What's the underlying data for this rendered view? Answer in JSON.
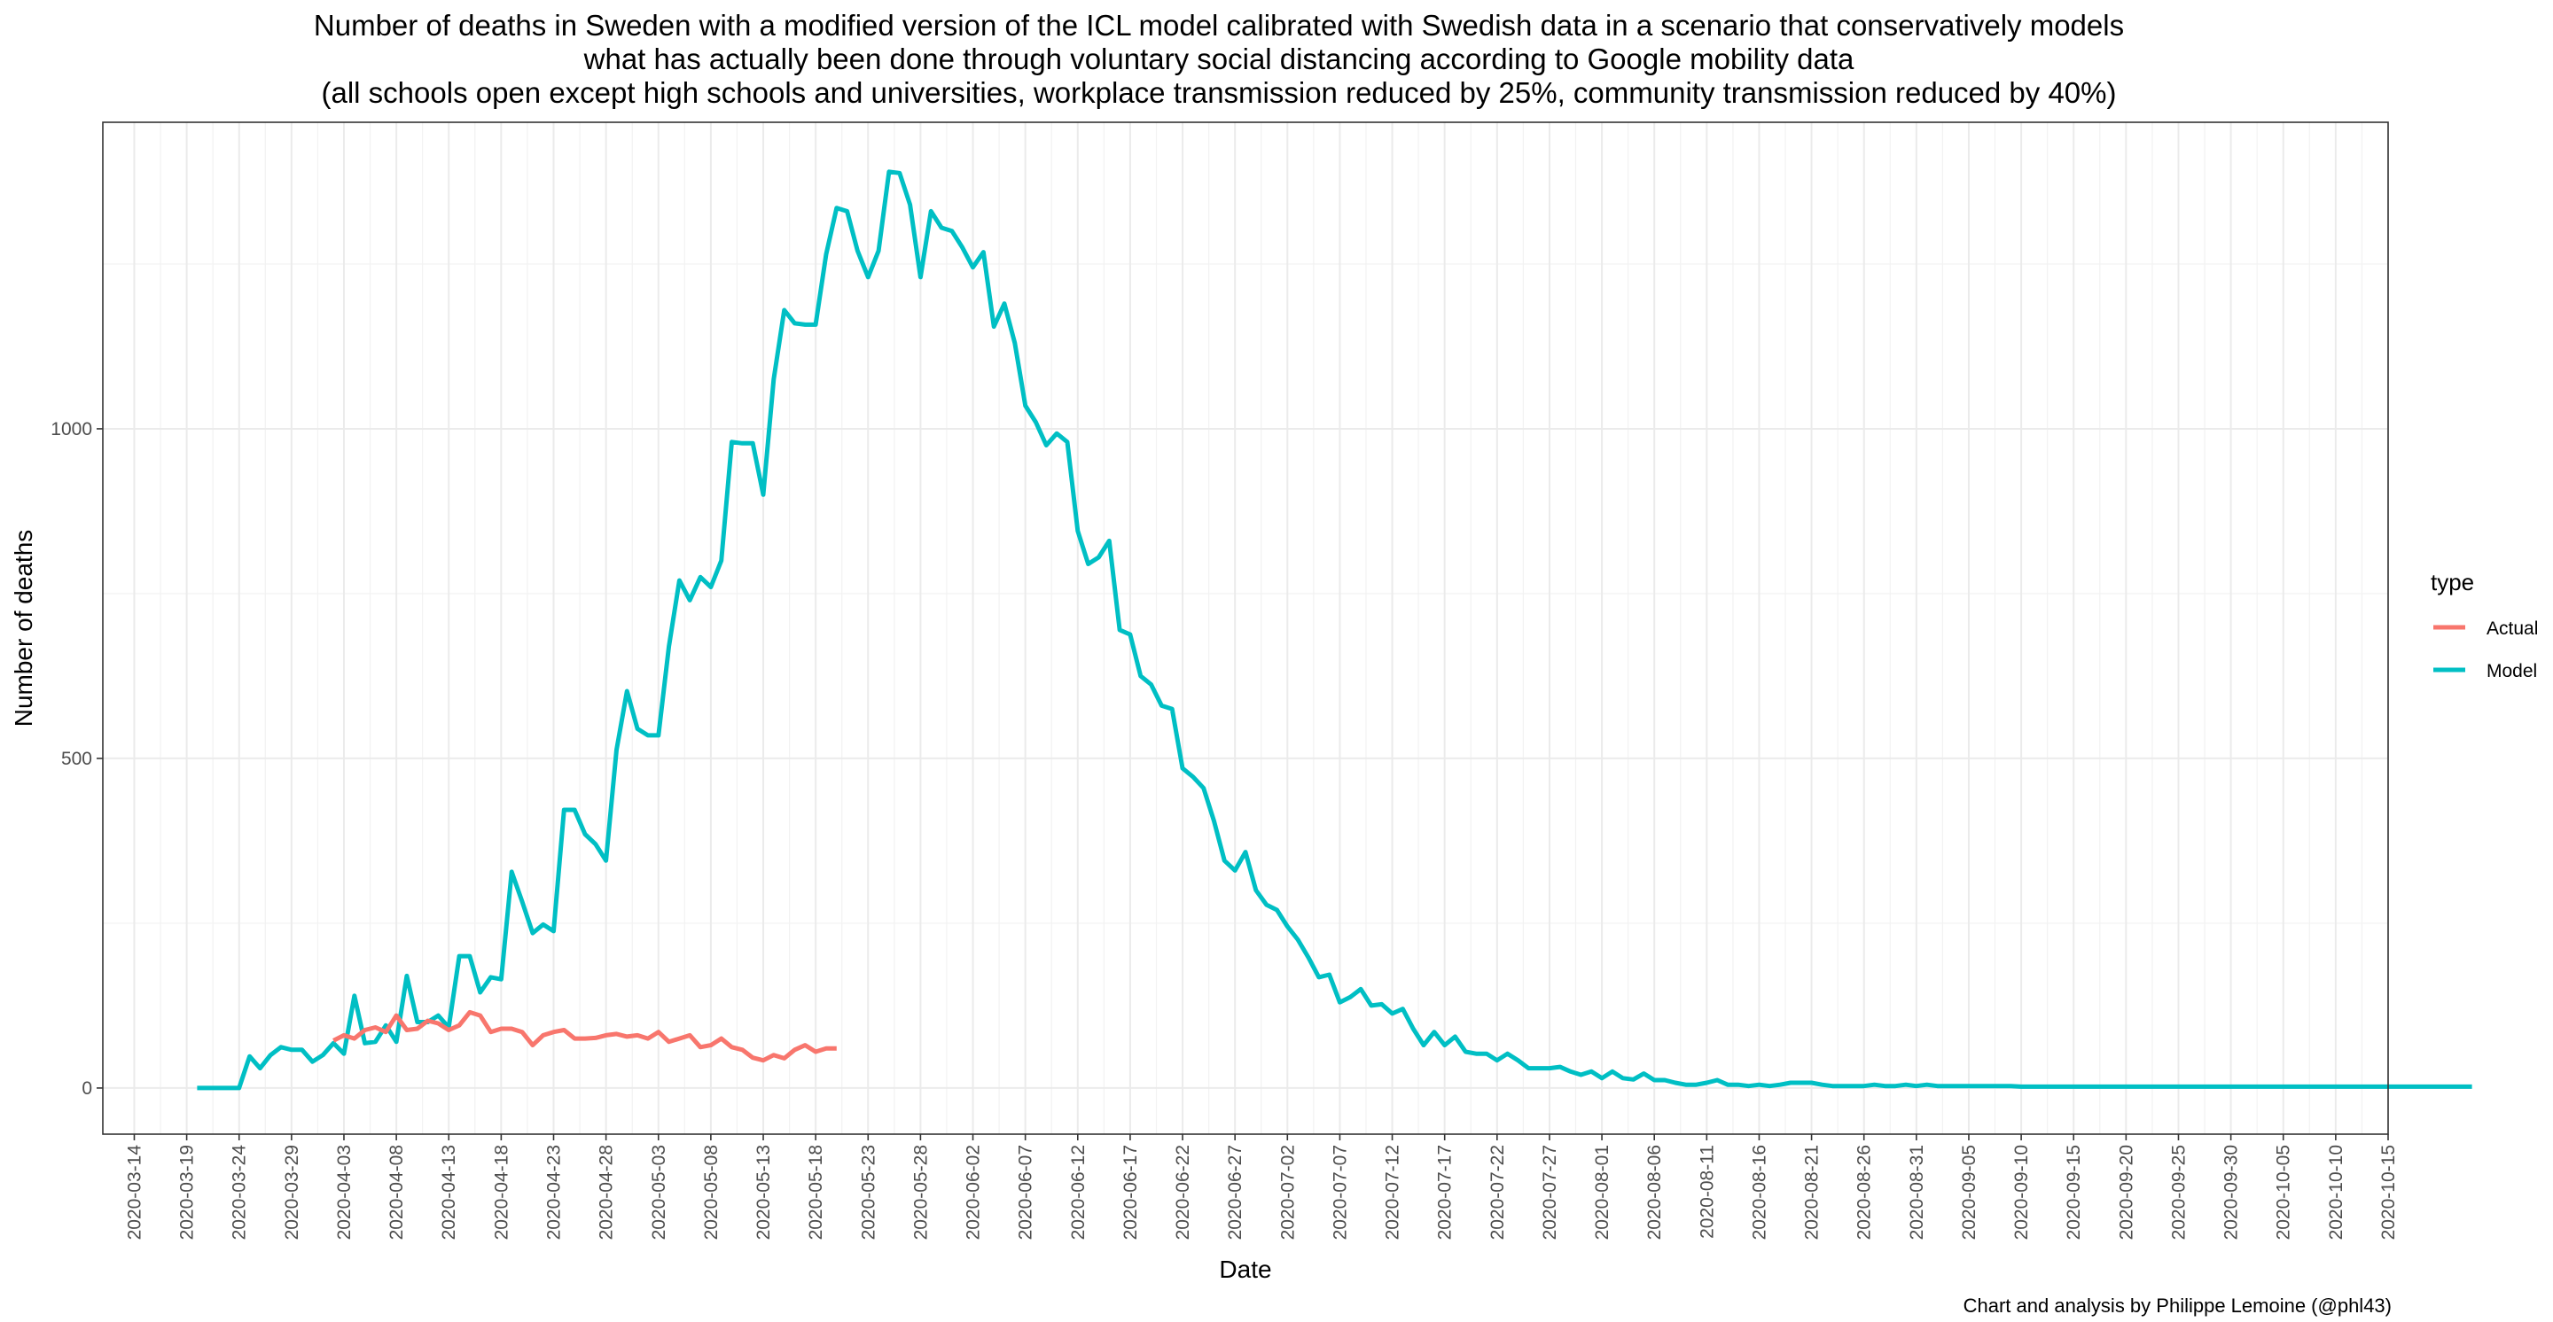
{
  "chart_data": {
    "type": "line",
    "title": [
      "Number of deaths in Sweden with a modified version of the ICL model calibrated with Swedish data in a scenario that conservatively models",
      "what has actually been done through voluntary social distancing according to Google mobility data",
      "(all schools open except high schools and universities, workplace transmission reduced by 25%, community transmission reduced by 40%)"
    ],
    "xlabel": "Date",
    "ylabel": "Number of deaths",
    "caption": "Chart and analysis by Philippe Lemoine (@phl43)",
    "x_start_date": "2020-03-11",
    "xlim_days": [
      0,
      218
    ],
    "ylim": [
      -70,
      1465
    ],
    "y_ticks": [
      0,
      500,
      1000
    ],
    "x_tick_labels": [
      "2020-03-14",
      "2020-03-19",
      "2020-03-24",
      "2020-03-29",
      "2020-04-03",
      "2020-04-08",
      "2020-04-13",
      "2020-04-18",
      "2020-04-23",
      "2020-04-28",
      "2020-05-03",
      "2020-05-08",
      "2020-05-13",
      "2020-05-18",
      "2020-05-23",
      "2020-05-28",
      "2020-06-02",
      "2020-06-07",
      "2020-06-12",
      "2020-06-17",
      "2020-06-22",
      "2020-06-27",
      "2020-07-02",
      "2020-07-07",
      "2020-07-12",
      "2020-07-17",
      "2020-07-22",
      "2020-07-27",
      "2020-08-01",
      "2020-08-06",
      "2020-08-11",
      "2020-08-16",
      "2020-08-21",
      "2020-08-26",
      "2020-08-31",
      "2020-09-05",
      "2020-09-10",
      "2020-09-15",
      "2020-09-20",
      "2020-09-25",
      "2020-09-30",
      "2020-10-05",
      "2020-10-10",
      "2020-10-15"
    ],
    "grid": true,
    "legend": {
      "title": "type",
      "position": "right"
    },
    "series": [
      {
        "name": "Actual",
        "color": "#F8766D",
        "x_start": "2020-04-02",
        "values": [
          72,
          80,
          75,
          88,
          92,
          85,
          110,
          88,
          90,
          102,
          98,
          88,
          95,
          115,
          110,
          85,
          90,
          90,
          85,
          65,
          80,
          85,
          88,
          75,
          75,
          76,
          80,
          82,
          78,
          80,
          75,
          85,
          70,
          75,
          80,
          62,
          65,
          75,
          62,
          58,
          46,
          42,
          50,
          45,
          58,
          65,
          55,
          60,
          60
        ]
      },
      {
        "name": "Model",
        "color": "#00BFC4",
        "x_start": "2020-03-20",
        "values": [
          0,
          0,
          0,
          0,
          0,
          48,
          30,
          50,
          62,
          58,
          58,
          40,
          50,
          68,
          52,
          140,
          68,
          70,
          95,
          70,
          170,
          100,
          100,
          110,
          92,
          200,
          200,
          145,
          168,
          165,
          328,
          283,
          235,
          248,
          238,
          422,
          422,
          385,
          370,
          345,
          513,
          602,
          545,
          535,
          535,
          670,
          770,
          740,
          775,
          760,
          800,
          980,
          978,
          978,
          900,
          1075,
          1180,
          1160,
          1158,
          1158,
          1265,
          1335,
          1330,
          1270,
          1230,
          1270,
          1390,
          1388,
          1340,
          1230,
          1330,
          1305,
          1300,
          1275,
          1245,
          1268,
          1155,
          1190,
          1130,
          1035,
          1010,
          975,
          993,
          980,
          845,
          795,
          805,
          830,
          695,
          688,
          625,
          612,
          580,
          575,
          485,
          472,
          455,
          405,
          345,
          330,
          358,
          300,
          278,
          270,
          245,
          225,
          198,
          168,
          172,
          130,
          138,
          150,
          125,
          127,
          113,
          120,
          90,
          65,
          85,
          65,
          78,
          55,
          52,
          52,
          42,
          52,
          42,
          30,
          30,
          30,
          32,
          25,
          20,
          25,
          15,
          25,
          15,
          13,
          22,
          12,
          12,
          8,
          5,
          5,
          8,
          12,
          5,
          5,
          3,
          5,
          3,
          5,
          8,
          8,
          8,
          5,
          3,
          3,
          3,
          3,
          5,
          3,
          3,
          5,
          3,
          5,
          3,
          3,
          3,
          3,
          3,
          3,
          3,
          3,
          2,
          2,
          2,
          2,
          2,
          2,
          2,
          2,
          2,
          2,
          2,
          2,
          2,
          2,
          2,
          2,
          2,
          2,
          2,
          2,
          2,
          2,
          2,
          2,
          2,
          2,
          2,
          2,
          2,
          2,
          2,
          2,
          2,
          2,
          2,
          2,
          2,
          2,
          2,
          2,
          2,
          2,
          2,
          2
        ]
      }
    ]
  }
}
